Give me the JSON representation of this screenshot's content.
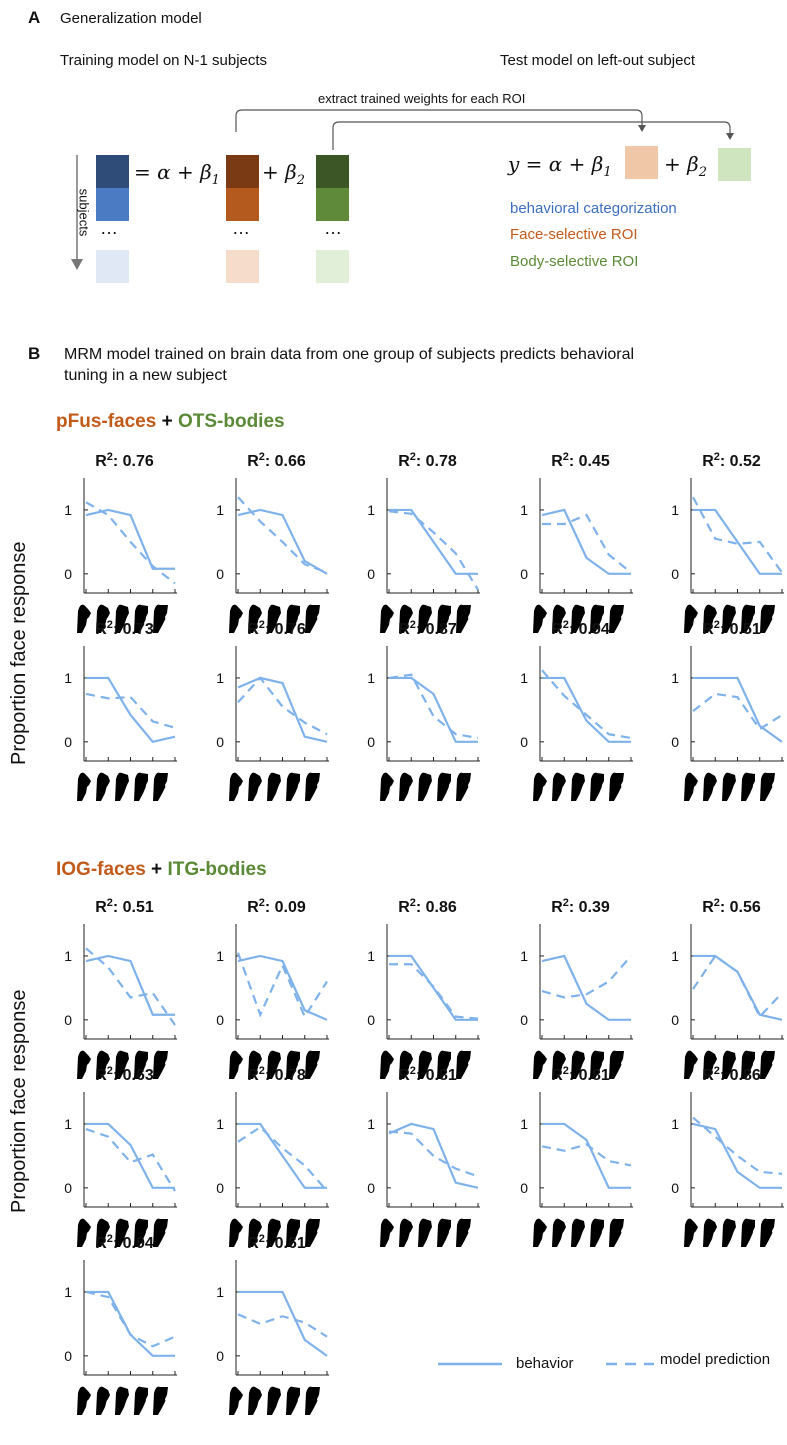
{
  "panelA": {
    "letter": "A",
    "title": "Generalization model",
    "training_label": "Training model on N-1 subjects",
    "test_label": "Test model on left-out subject",
    "arrow_label": "extract trained weights for each ROI",
    "subjects_label": "subjects",
    "equation_left": "= α + β",
    "beta1_sub": "1",
    "plus_beta2": "+ β",
    "beta2_sub": "2",
    "test_equation": "y = α + β",
    "test_plus_beta2": "+ β",
    "ellipsis": "…",
    "legend": {
      "behavioral": "behavioral categorization",
      "face": "Face-selective ROI",
      "body": "Body-selective ROI"
    },
    "colors": {
      "blue_dark": "#2e4c77",
      "blue_mid": "#4a7bc3",
      "blue_light": "#e1e8f5",
      "orange_dark": "#7a3b14",
      "orange_mid": "#b45a1e",
      "orange_light": "#f5dccb",
      "orange_test": "#f0c8a8",
      "green_dark": "#3c5626",
      "green_mid": "#5f8a3a",
      "green_light": "#e2efd8",
      "green_test": "#cfe5bf"
    }
  },
  "panelB": {
    "letter": "B",
    "title_line1": "MRM model trained on brain data from one group of subjects predicts behavioral",
    "title_line2": "tuning in a new subject",
    "group1": {
      "face": "pFus-faces",
      "plus": "+",
      "body": "OTS-bodies"
    },
    "group2": {
      "face": "IOG-faces",
      "plus": "+",
      "body": "ITG-bodies"
    },
    "ylabel": "Proportion face response",
    "legend": {
      "behavior": "behavior",
      "model": "model prediction"
    },
    "line_color": "#7fb2ea"
  },
  "chart_data": {
    "type": "line",
    "x_description": "face-to-hand morph levels (hand icons)",
    "x": [
      1,
      2,
      3,
      4,
      5
    ],
    "ylim": [
      -0.3,
      1.5
    ],
    "yticks": [
      0,
      1
    ],
    "series_names": [
      "behavior",
      "model prediction"
    ],
    "groups": [
      {
        "name": "pFus-faces + OTS-bodies",
        "subplots": [
          {
            "r2": "0.76",
            "behavior": [
              0.92,
              1.0,
              0.92,
              0.08,
              0.08
            ],
            "model": [
              1.12,
              0.92,
              0.5,
              0.12,
              -0.15
            ]
          },
          {
            "r2": "0.66",
            "behavior": [
              0.92,
              1.0,
              0.92,
              0.2,
              0.0
            ],
            "model": [
              1.2,
              0.82,
              0.5,
              0.15,
              0.02
            ]
          },
          {
            "r2": "0.78",
            "behavior": [
              1.0,
              1.0,
              0.5,
              0.0,
              0.0
            ],
            "model": [
              0.98,
              0.94,
              0.65,
              0.32,
              -0.25
            ]
          },
          {
            "r2": "0.45",
            "behavior": [
              0.92,
              1.0,
              0.25,
              0.0,
              0.0
            ],
            "model": [
              0.78,
              0.78,
              0.92,
              0.3,
              0.02
            ]
          },
          {
            "r2": "0.52",
            "behavior": [
              1.0,
              1.0,
              0.5,
              0.0,
              0.0
            ],
            "model": [
              1.2,
              0.55,
              0.47,
              0.5,
              0.02
            ]
          },
          {
            "r2": "0.73",
            "behavior": [
              1.0,
              1.0,
              0.42,
              0.0,
              0.08
            ],
            "model": [
              0.75,
              0.68,
              0.7,
              0.32,
              0.22
            ]
          },
          {
            "r2": "0.76",
            "behavior": [
              0.85,
              1.0,
              0.92,
              0.08,
              0.0
            ],
            "model": [
              0.62,
              1.0,
              0.55,
              0.3,
              0.12
            ]
          },
          {
            "r2": "0.87",
            "behavior": [
              1.0,
              1.0,
              0.75,
              0.0,
              0.0
            ],
            "model": [
              1.0,
              1.05,
              0.4,
              0.12,
              0.06
            ]
          },
          {
            "r2": "0.94",
            "behavior": [
              1.0,
              1.0,
              0.33,
              0.0,
              0.0
            ],
            "model": [
              1.12,
              0.72,
              0.42,
              0.12,
              0.06
            ]
          },
          {
            "r2": "0.51",
            "behavior": [
              1.0,
              1.0,
              1.0,
              0.25,
              0.0
            ],
            "model": [
              0.48,
              0.75,
              0.7,
              0.2,
              0.42
            ]
          }
        ]
      },
      {
        "name": "IOG-faces + ITG-bodies",
        "subplots": [
          {
            "r2": "0.51",
            "behavior": [
              0.92,
              1.0,
              0.92,
              0.08,
              0.08
            ],
            "model": [
              1.12,
              0.82,
              0.35,
              0.42,
              -0.08
            ]
          },
          {
            "r2": "0.09",
            "behavior": [
              0.92,
              1.0,
              0.92,
              0.15,
              0.0
            ],
            "model": [
              1.05,
              0.08,
              0.85,
              0.05,
              0.6
            ]
          },
          {
            "r2": "0.86",
            "behavior": [
              1.0,
              1.0,
              0.5,
              0.0,
              0.0
            ],
            "model": [
              0.87,
              0.87,
              0.52,
              0.05,
              0.02
            ]
          },
          {
            "r2": "0.39",
            "behavior": [
              0.92,
              1.0,
              0.25,
              0.0,
              0.0
            ],
            "model": [
              0.45,
              0.35,
              0.4,
              0.6,
              1.0
            ]
          },
          {
            "r2": "0.56",
            "behavior": [
              1.0,
              1.0,
              0.75,
              0.08,
              0.0
            ],
            "model": [
              0.48,
              1.0,
              0.75,
              0.05,
              0.42
            ]
          },
          {
            "r2": "0.63",
            "behavior": [
              1.0,
              1.0,
              0.67,
              0.0,
              0.0
            ],
            "model": [
              0.92,
              0.8,
              0.4,
              0.52,
              -0.05
            ]
          },
          {
            "r2": "0.78",
            "behavior": [
              1.0,
              1.0,
              0.5,
              0.0,
              0.0
            ],
            "model": [
              0.72,
              0.95,
              0.62,
              0.35,
              -0.05
            ]
          },
          {
            "r2": "0.81",
            "behavior": [
              0.85,
              1.0,
              0.92,
              0.08,
              0.0
            ],
            "model": [
              0.88,
              0.85,
              0.5,
              0.3,
              0.18
            ]
          },
          {
            "r2": "0.81",
            "behavior": [
              1.0,
              1.0,
              0.75,
              0.0,
              0.0
            ],
            "model": [
              0.65,
              0.58,
              0.68,
              0.42,
              0.35
            ]
          },
          {
            "r2": "0.86",
            "behavior": [
              1.0,
              0.92,
              0.25,
              0.0,
              0.0
            ],
            "model": [
              1.1,
              0.8,
              0.5,
              0.25,
              0.22
            ]
          },
          {
            "r2": "0.94",
            "behavior": [
              1.0,
              1.0,
              0.33,
              0.0,
              0.0
            ],
            "model": [
              1.0,
              0.92,
              0.33,
              0.15,
              0.3
            ]
          },
          {
            "r2": "0.61",
            "behavior": [
              1.0,
              1.0,
              1.0,
              0.25,
              0.0
            ],
            "model": [
              0.65,
              0.5,
              0.62,
              0.52,
              0.3
            ]
          }
        ]
      }
    ]
  }
}
